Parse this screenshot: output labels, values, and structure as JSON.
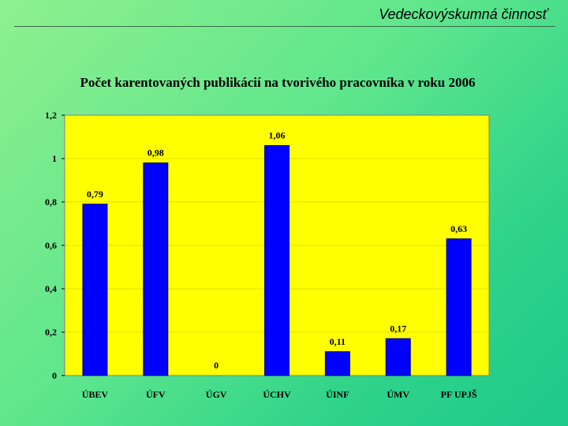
{
  "slide": {
    "title": "Vedeckovýskumná činnosť"
  },
  "chart_data": {
    "type": "bar",
    "title": "Počet karentovaných publikácií na tvorivého pracovníka v roku 2006",
    "categories": [
      "ÚBEV",
      "ÚFV",
      "ÚGV",
      "ÚCHV",
      "ÚINF",
      "ÚMV",
      "PF UPJŠ"
    ],
    "values": [
      0.79,
      0.98,
      0,
      1.06,
      0.11,
      0.17,
      0.63
    ],
    "data_labels": [
      "0,79",
      "0,98",
      "0",
      "1,06",
      "0,11",
      "0,17",
      "0,63"
    ],
    "y_ticks": [
      0,
      0.2,
      0.4,
      0.6,
      0.8,
      1,
      1.2
    ],
    "y_tick_labels": [
      "0",
      "0,2",
      "0,4",
      "0,6",
      "0,8",
      "1",
      "1,2"
    ],
    "ylim": [
      0,
      1.2
    ],
    "xlabel": "",
    "ylabel": "",
    "grid": true,
    "legend": "none",
    "colors": {
      "plot_background": "#ffff00",
      "bar": "#0000ff",
      "bar_border": "#000080",
      "grid": "#e0e000"
    }
  }
}
